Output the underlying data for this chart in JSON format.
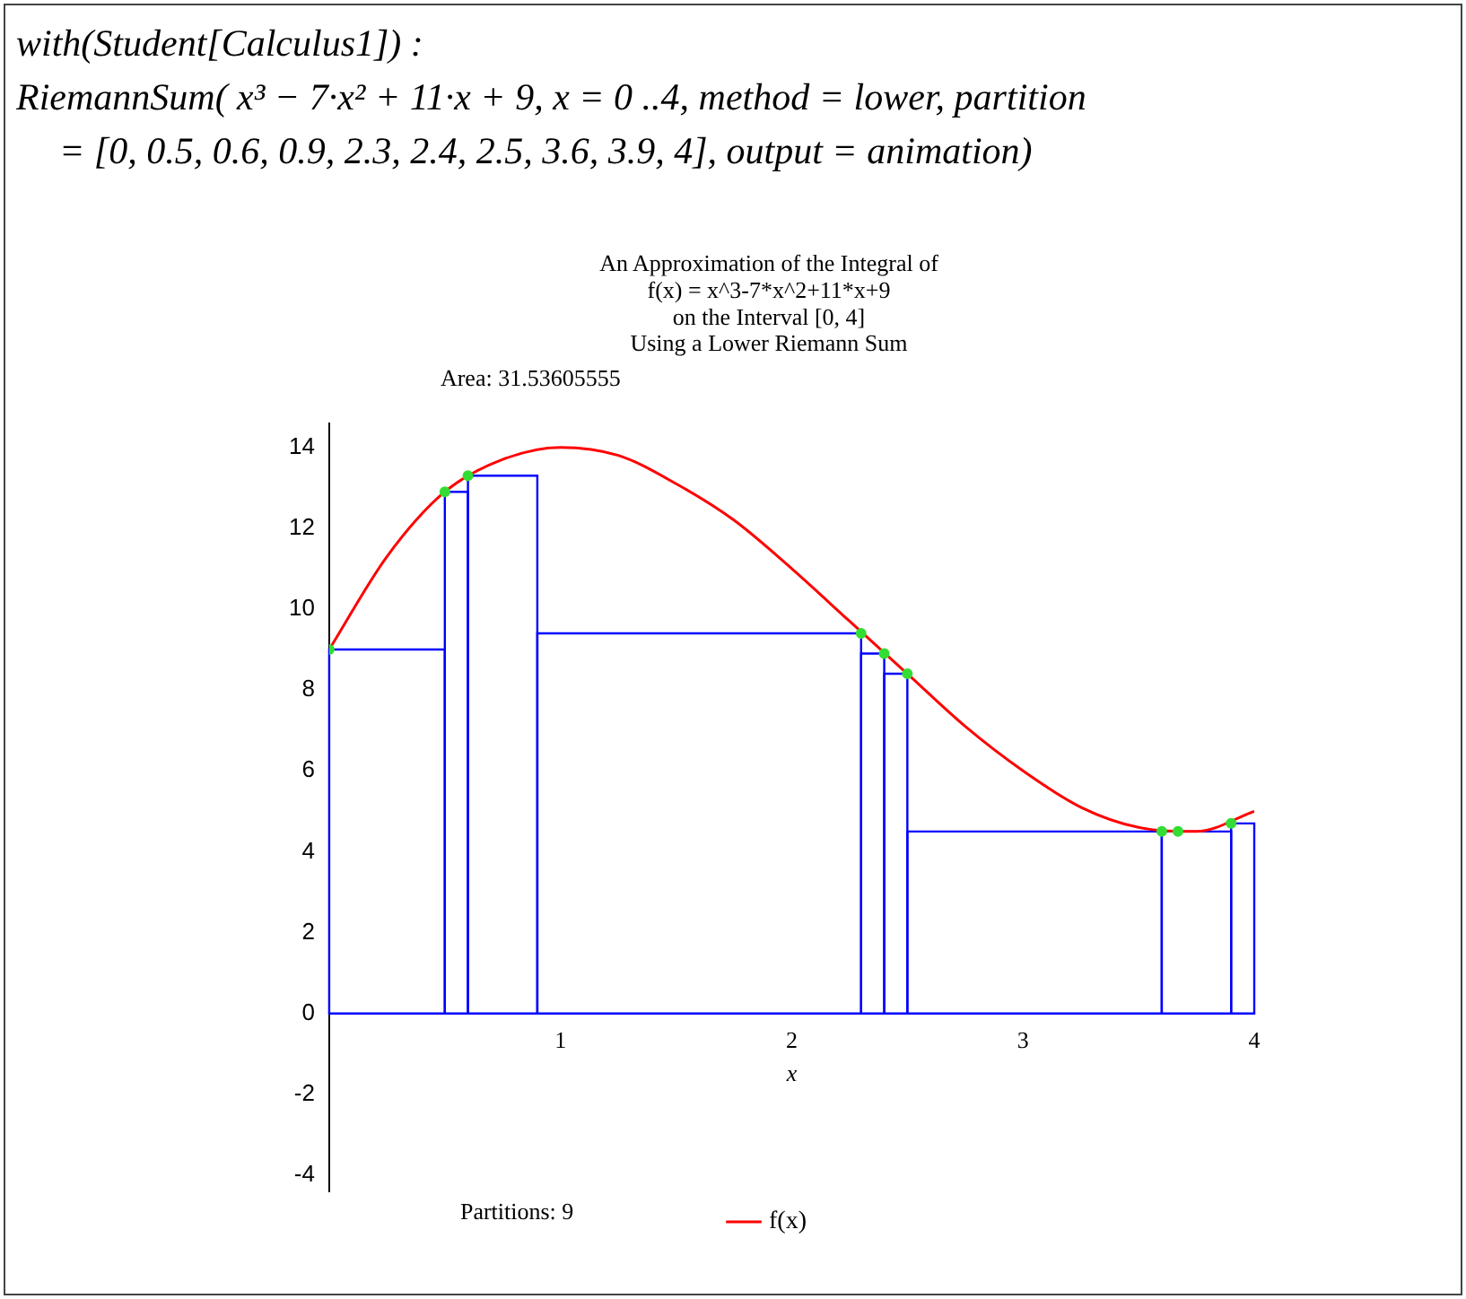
{
  "chart_data": {
    "type": "histogram",
    "title": "An Approximation of the Integral of\nf(x) = x^3-7*x^2+11*x+9\non the Interval [0, 4]\nUsing a Lower Riemann Sum",
    "xlabel": "x",
    "annotations": [
      "with(Student[Calculus1]) :",
      "RiemannSum( x³ − 7·x² + 11·x + 9, x = 0 ..4, method = lower, partition",
      "= [0, 0.5, 0.6, 0.9, 2.3, 2.4, 2.5, 3.6, 3.9, 4], output = animation)",
      "Area: 31.53605555",
      "Partitions: 9"
    ],
    "xlim": [
      0,
      4
    ],
    "xticks": [
      1,
      2,
      3,
      4
    ],
    "ylim": [
      -4.4,
      14.6
    ],
    "yticks": [
      -4,
      -2,
      0,
      2,
      4,
      6,
      8,
      10,
      12,
      14
    ],
    "grid": false,
    "legend": "bottom",
    "series": [
      {
        "color": "#0000ff",
        "bins": [
          0,
          0.5,
          0.6,
          0.9,
          2.3,
          2.4,
          2.5,
          3.6,
          3.9,
          4
        ],
        "values": [
          9,
          12.9,
          13.3,
          9.4,
          8.9,
          8.4,
          4.5,
          4.5,
          4.7
        ]
      },
      {
        "type": "line",
        "name": "f(x)",
        "color": "#ff0000",
        "x": [
          0,
          0.25,
          0.5,
          0.75,
          1,
          1.25,
          1.5,
          1.75,
          2,
          2.25,
          2.5,
          2.75,
          3,
          3.25,
          3.5,
          3.75,
          4
        ],
        "values": [
          9,
          11.3,
          12.9,
          13.7,
          14,
          13.8,
          13.1,
          12.2,
          11,
          9.7,
          8.4,
          7.1,
          6,
          5.1,
          4.6,
          4.5,
          5
        ]
      },
      {
        "type": "scatter",
        "color": "#33dd33",
        "marker": "circle",
        "x": [
          0,
          0.5,
          0.6,
          2.3,
          2.4,
          2.5,
          3.6,
          3.67,
          3.9
        ],
        "values": [
          9,
          12.9,
          13.3,
          9.4,
          8.9,
          8.4,
          4.5,
          4.5,
          4.7
        ]
      }
    ]
  }
}
